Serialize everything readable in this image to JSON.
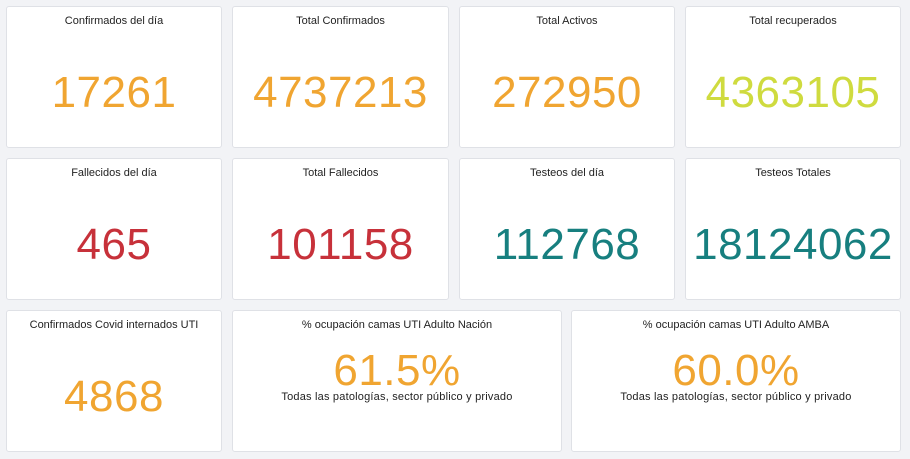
{
  "colors": {
    "orange": "#f0a531",
    "yellow_green": "#cfdb3f",
    "red": "#c7313a",
    "teal": "#177f7f"
  },
  "row1": [
    {
      "title": "Confirmados del día",
      "value": "17261"
    },
    {
      "title": "Total Confirmados",
      "value": "4737213"
    },
    {
      "title": "Total Activos",
      "value": "272950"
    },
    {
      "title": "Total recuperados",
      "value": "4363105"
    }
  ],
  "row2": [
    {
      "title": "Fallecidos del día",
      "value": "465"
    },
    {
      "title": "Total Fallecidos",
      "value": "101158"
    },
    {
      "title": "Testeos del día",
      "value": "112768"
    },
    {
      "title": "Testeos Totales",
      "value": "18124062"
    }
  ],
  "row3": [
    {
      "title": "Confirmados Covid internados UTI",
      "value": "4868"
    },
    {
      "title": "% ocupación camas UTI Adulto Nación",
      "value": "61.5%",
      "subtitle": "Todas las patologías, sector público y privado"
    },
    {
      "title": "% ocupación camas UTI Adulto AMBA",
      "value": "60.0%",
      "subtitle": "Todas las patologías, sector público y privado"
    }
  ]
}
